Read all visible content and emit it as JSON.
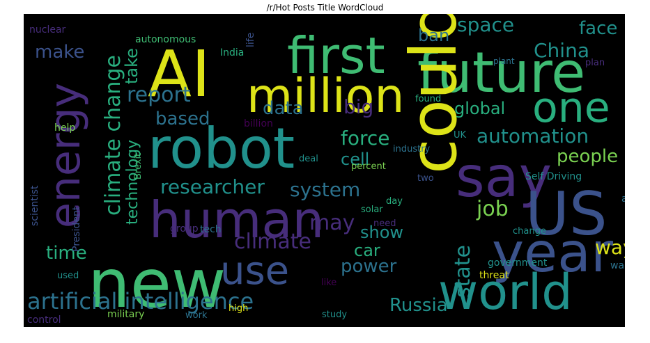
{
  "title": "/r/Hot Posts Title WordCloud",
  "background_color": "#000000",
  "palette": {
    "yellow": "#dde318",
    "lime": "#7ad151",
    "green": "#3fbc73",
    "teal": "#29af7f",
    "cyan": "#21918c",
    "blue": "#2c728e",
    "slate": "#3b528b",
    "indigo": "#472d7b",
    "purple": "#440154"
  },
  "words": [
    {
      "text": "AI",
      "color": "yellow"
    },
    {
      "text": "first",
      "color": "green"
    },
    {
      "text": "million",
      "color": "yellow"
    },
    {
      "text": "future",
      "color": "green"
    },
    {
      "text": "one",
      "color": "teal"
    },
    {
      "text": "robot",
      "color": "cyan"
    },
    {
      "text": "say",
      "color": "indigo"
    },
    {
      "text": "could",
      "color": "yellow"
    },
    {
      "text": "US",
      "color": "slate"
    },
    {
      "text": "year",
      "color": "slate"
    },
    {
      "text": "world",
      "color": "cyan"
    },
    {
      "text": "new",
      "color": "green"
    },
    {
      "text": "human",
      "color": "indigo"
    },
    {
      "text": "use",
      "color": "slate"
    },
    {
      "text": "energy",
      "color": "indigo"
    },
    {
      "text": "artificial intelligence",
      "color": "blue"
    },
    {
      "text": "climate change",
      "color": "teal"
    },
    {
      "text": "technology",
      "color": "teal"
    },
    {
      "text": "make",
      "color": "slate"
    },
    {
      "text": "take",
      "color": "teal"
    },
    {
      "text": "report",
      "color": "blue"
    },
    {
      "text": "based",
      "color": "blue"
    },
    {
      "text": "data",
      "color": "blue"
    },
    {
      "text": "big",
      "color": "indigo"
    },
    {
      "text": "ban",
      "color": "blue"
    },
    {
      "text": "space",
      "color": "cyan"
    },
    {
      "text": "face",
      "color": "cyan"
    },
    {
      "text": "China",
      "color": "cyan"
    },
    {
      "text": "global",
      "color": "teal"
    },
    {
      "text": "automation",
      "color": "cyan"
    },
    {
      "text": "people",
      "color": "lime"
    },
    {
      "text": "force",
      "color": "teal"
    },
    {
      "text": "cell",
      "color": "cyan"
    },
    {
      "text": "system",
      "color": "blue"
    },
    {
      "text": "researcher",
      "color": "cyan"
    },
    {
      "text": "may",
      "color": "indigo"
    },
    {
      "text": "climate",
      "color": "indigo"
    },
    {
      "text": "show",
      "color": "cyan"
    },
    {
      "text": "power",
      "color": "blue"
    },
    {
      "text": "car",
      "color": "teal"
    },
    {
      "text": "job",
      "color": "lime"
    },
    {
      "text": "state",
      "color": "cyan"
    },
    {
      "text": "way",
      "color": "yellow"
    },
    {
      "text": "time",
      "color": "teal"
    },
    {
      "text": "Russia",
      "color": "cyan"
    },
    {
      "text": "nuclear",
      "color": "indigo"
    },
    {
      "text": "autonomous",
      "color": "green"
    },
    {
      "text": "life",
      "color": "slate"
    },
    {
      "text": "India",
      "color": "teal"
    },
    {
      "text": "plant",
      "color": "blue"
    },
    {
      "text": "plan",
      "color": "indigo"
    },
    {
      "text": "help",
      "color": "lime"
    },
    {
      "text": "billion",
      "color": "purple"
    },
    {
      "text": "found",
      "color": "teal"
    },
    {
      "text": "UK",
      "color": "cyan"
    },
    {
      "text": "industry",
      "color": "blue"
    },
    {
      "text": "Self Driving",
      "color": "cyan"
    },
    {
      "text": "scientist",
      "color": "slate"
    },
    {
      "text": "Brexit",
      "color": "green"
    },
    {
      "text": "deal",
      "color": "cyan"
    },
    {
      "text": "percent",
      "color": "lime"
    },
    {
      "text": "two",
      "color": "slate"
    },
    {
      "text": "day",
      "color": "teal"
    },
    {
      "text": "solar",
      "color": "teal"
    },
    {
      "text": "need",
      "color": "indigo"
    },
    {
      "text": "air",
      "color": "blue"
    },
    {
      "text": "President",
      "color": "slate"
    },
    {
      "text": "group",
      "color": "indigo"
    },
    {
      "text": "tech",
      "color": "blue"
    },
    {
      "text": "change",
      "color": "cyan"
    },
    {
      "text": "government",
      "color": "cyan"
    },
    {
      "text": "want",
      "color": "blue"
    },
    {
      "text": "used",
      "color": "cyan"
    },
    {
      "text": "like",
      "color": "purple"
    },
    {
      "text": "threat",
      "color": "yellow"
    },
    {
      "text": "control",
      "color": "indigo"
    },
    {
      "text": "military",
      "color": "lime"
    },
    {
      "text": "work",
      "color": "blue"
    },
    {
      "text": "high",
      "color": "yellow"
    },
    {
      "text": "study",
      "color": "cyan"
    }
  ]
}
